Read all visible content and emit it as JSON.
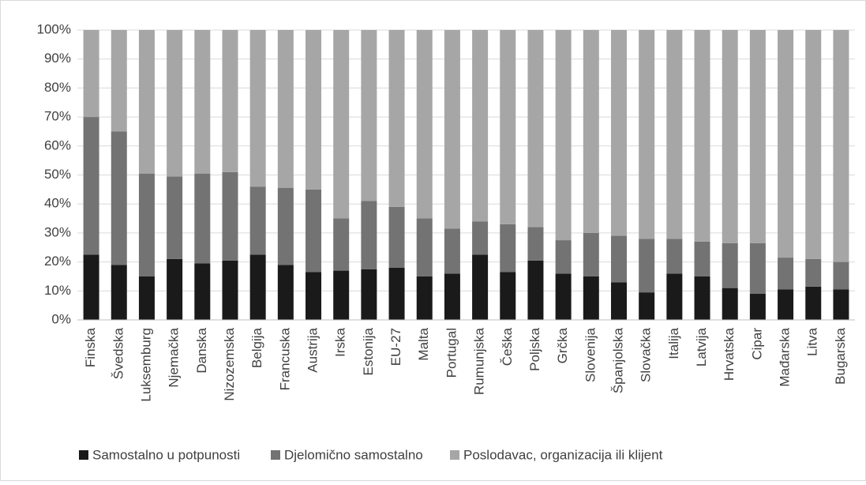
{
  "chart_data": {
    "type": "stacked_bar",
    "categories": [
      "Finska",
      "Švedska",
      "Luksemburg",
      "Njemačka",
      "Danska",
      "Nizozemska",
      "Belgija",
      "Francuska",
      "Austrija",
      "Irska",
      "Estonija",
      "EU-27",
      "Malta",
      "Portugal",
      "Rumunjska",
      "Češka",
      "Poljska",
      "Grčka",
      "Slovenija",
      "Španjolska",
      "Slovačka",
      "Italija",
      "Latvija",
      "Hrvatska",
      "Cipar",
      "Mađarska",
      "Litva",
      "Bugarska"
    ],
    "series": [
      {
        "name": "Samostalno u potpunosti",
        "color": "#1a1a1a",
        "values": [
          22.5,
          19,
          15,
          21,
          19.5,
          20.5,
          22.5,
          19,
          16.5,
          17,
          17.5,
          18,
          15,
          16,
          22.5,
          16.5,
          20.5,
          16,
          15,
          13,
          9.5,
          16,
          15,
          11,
          9,
          10.5,
          11.5,
          10.5
        ]
      },
      {
        "name": "Djelomično samostalno",
        "color": "#737373",
        "values": [
          47.5,
          46,
          35.5,
          28.5,
          31,
          30.5,
          23.5,
          26.5,
          28.5,
          18,
          23.5,
          21,
          20,
          15.5,
          11.5,
          16.5,
          11.5,
          11.5,
          15,
          16,
          18.5,
          12,
          12,
          15.5,
          17.5,
          11,
          9.5,
          9.5
        ]
      },
      {
        "name": "Poslodavac, organizacija ili klijent",
        "color": "#a6a6a6",
        "values": [
          30,
          35,
          49.5,
          50.5,
          49.5,
          49,
          54,
          54.5,
          55,
          65,
          59,
          61,
          65,
          68.5,
          66,
          67,
          68,
          72.5,
          70,
          71,
          72,
          72,
          73,
          73.5,
          73.5,
          78.5,
          79,
          80
        ]
      }
    ],
    "ylim": [
      0,
      100
    ],
    "yticks": [
      {
        "value": 0,
        "label": "0%"
      },
      {
        "value": 10,
        "label": "10%"
      },
      {
        "value": 20,
        "label": "20%"
      },
      {
        "value": 30,
        "label": "30%"
      },
      {
        "value": 40,
        "label": "40%"
      },
      {
        "value": 50,
        "label": "50%"
      },
      {
        "value": 60,
        "label": "60%"
      },
      {
        "value": 70,
        "label": "70%"
      },
      {
        "value": 80,
        "label": "80%"
      },
      {
        "value": 90,
        "label": "90%"
      },
      {
        "value": 100,
        "label": "100%"
      }
    ],
    "grid": true,
    "legend": "bottom"
  }
}
